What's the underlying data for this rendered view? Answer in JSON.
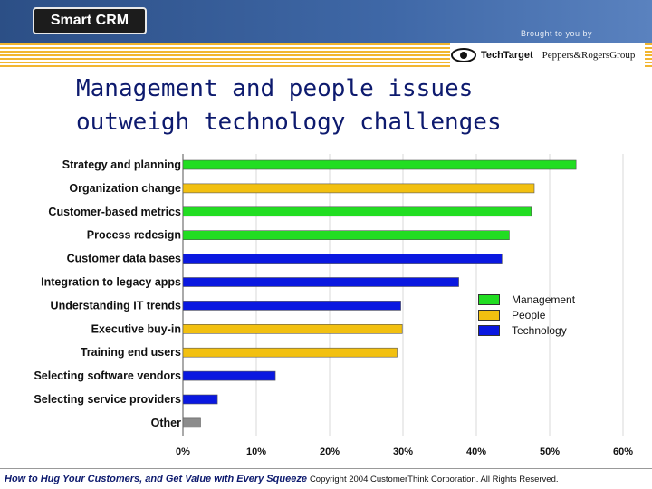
{
  "header": {
    "logo_text": "Smart CRM",
    "brought_by": "Brought to you by",
    "partner_1": "TechTarget",
    "partner_2": "Peppers&RogersGroup",
    "banner_color": "#3a5f9e",
    "stripe_color": "#f2b630"
  },
  "slide": {
    "title_line_1": "Management and people issues",
    "title_line_2": "outweigh technology challenges"
  },
  "chart_data": {
    "type": "bar",
    "orientation": "horizontal",
    "categories": [
      "Strategy and planning",
      "Organization change",
      "Customer-based metrics",
      "Process redesign",
      "Customer data bases",
      "Integration to legacy apps",
      "Understanding IT trends",
      "Executive buy-in",
      "Training end users",
      "Selecting software vendors",
      "Selecting service providers",
      "Other"
    ],
    "values": [
      53.6,
      47.9,
      47.5,
      44.5,
      43.5,
      37.6,
      29.7,
      29.9,
      29.2,
      12.6,
      4.7,
      2.4
    ],
    "groups": [
      "Management",
      "People",
      "Management",
      "Management",
      "Technology",
      "Technology",
      "Technology",
      "People",
      "People",
      "Technology",
      "Technology",
      "Other"
    ],
    "colors": {
      "Management": "#22dd22",
      "People": "#f2c010",
      "Technology": "#0a18e0",
      "Other": "#8c8c8c"
    },
    "legend": [
      "Management",
      "People",
      "Technology"
    ],
    "legend_position": "right",
    "x_ticks": [
      "0%",
      "10%",
      "20%",
      "30%",
      "40%",
      "50%",
      "60%"
    ],
    "xlim": [
      0,
      60
    ],
    "grid": true
  },
  "footer": {
    "italic_text": "How to Hug Your Customers, and Get Value with Every Squeeze",
    "copyright": "Copyright 2004 CustomerThink Corporation. All Rights Reserved."
  }
}
